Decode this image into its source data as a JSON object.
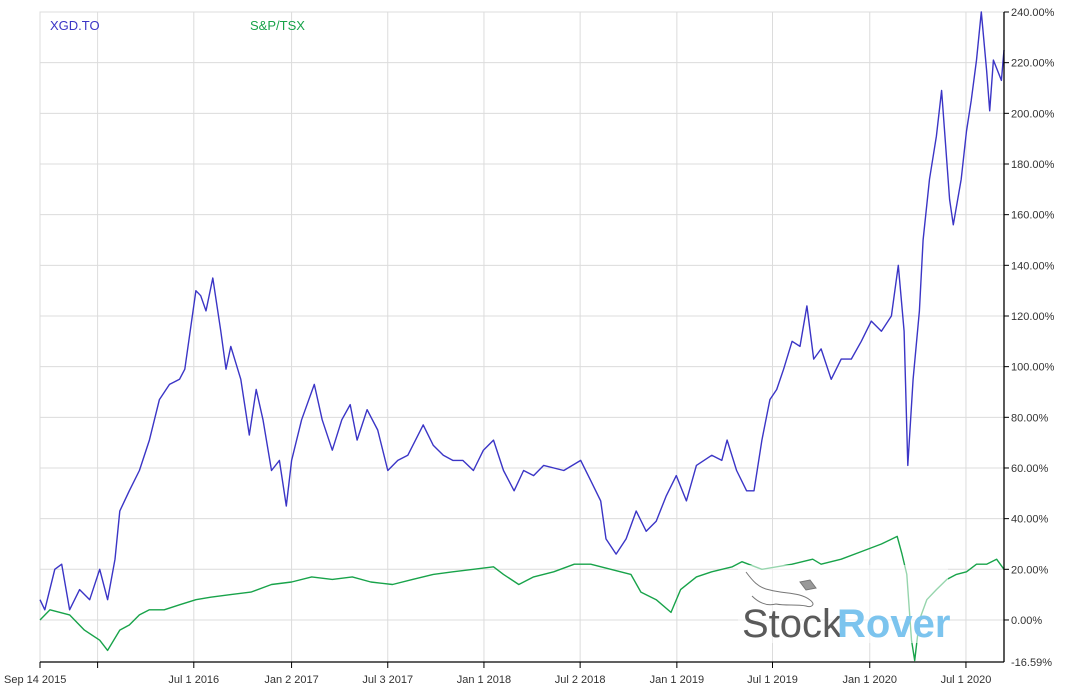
{
  "chart_data": {
    "type": "line",
    "title": "",
    "xlabel": "",
    "ylabel": "",
    "xlim": [
      "2015-09-14",
      "2020-09-11"
    ],
    "ylim": [
      -16.59,
      240
    ],
    "y_ticks": [
      240,
      220,
      200,
      180,
      160,
      140,
      120,
      100,
      80,
      60,
      40,
      20,
      0
    ],
    "y_tick_labels": [
      "240.00%",
      "220.00%",
      "200.00%",
      "180.00%",
      "160.00%",
      "140.00%",
      "120.00%",
      "100.00%",
      "80.00%",
      "60.00%",
      "40.00%",
      "20.00%",
      "0.00%"
    ],
    "y_min_label": "-16.59%",
    "x_ticks": [
      {
        "date": "2015-09-14",
        "label": "Sep 14 2015"
      },
      {
        "date": "2016-01-01",
        "label": ""
      },
      {
        "date": "2016-07-01",
        "label": "Jul 1 2016"
      },
      {
        "date": "2017-01-02",
        "label": "Jan 2 2017"
      },
      {
        "date": "2017-07-03",
        "label": "Jul 3 2017"
      },
      {
        "date": "2018-01-01",
        "label": "Jan 1 2018"
      },
      {
        "date": "2018-07-02",
        "label": "Jul 2 2018"
      },
      {
        "date": "2019-01-01",
        "label": "Jan 1 2019"
      },
      {
        "date": "2019-07-01",
        "label": "Jul 1 2019"
      },
      {
        "date": "2020-01-01",
        "label": "Jan 1 2020"
      },
      {
        "date": "2020-07-01",
        "label": "Jul 1 2020"
      }
    ],
    "grid": true,
    "legend_position": "top-left",
    "y_axis_side": "right",
    "series": [
      {
        "name": "XGD.TO",
        "color": "#3b35c6",
        "points": [
          [
            "2015-09-14",
            8
          ],
          [
            "2015-09-23",
            4
          ],
          [
            "2015-10-12",
            20
          ],
          [
            "2015-10-25",
            22
          ],
          [
            "2015-11-09",
            4
          ],
          [
            "2015-11-28",
            12
          ],
          [
            "2015-12-17",
            8
          ],
          [
            "2016-01-05",
            20
          ],
          [
            "2016-01-20",
            8
          ],
          [
            "2016-02-03",
            24
          ],
          [
            "2016-02-12",
            43
          ],
          [
            "2016-03-01",
            51
          ],
          [
            "2016-03-20",
            59
          ],
          [
            "2016-04-08",
            71
          ],
          [
            "2016-04-27",
            87
          ],
          [
            "2016-05-16",
            93
          ],
          [
            "2016-06-04",
            95
          ],
          [
            "2016-06-14",
            99
          ],
          [
            "2016-07-05",
            130
          ],
          [
            "2016-07-14",
            128
          ],
          [
            "2016-07-24",
            122
          ],
          [
            "2016-08-06",
            135
          ],
          [
            "2016-08-21",
            114
          ],
          [
            "2016-08-31",
            99
          ],
          [
            "2016-09-09",
            108
          ],
          [
            "2016-09-28",
            95
          ],
          [
            "2016-10-14",
            73
          ],
          [
            "2016-10-27",
            91
          ],
          [
            "2016-11-09",
            79
          ],
          [
            "2016-11-25",
            59
          ],
          [
            "2016-12-10",
            63
          ],
          [
            "2016-12-23",
            45
          ],
          [
            "2017-01-02",
            63
          ],
          [
            "2017-01-21",
            79
          ],
          [
            "2017-02-14",
            93
          ],
          [
            "2017-03-01",
            79
          ],
          [
            "2017-03-20",
            67
          ],
          [
            "2017-04-07",
            79
          ],
          [
            "2017-04-23",
            85
          ],
          [
            "2017-05-06",
            71
          ],
          [
            "2017-05-25",
            83
          ],
          [
            "2017-06-14",
            75
          ],
          [
            "2017-07-03",
            59
          ],
          [
            "2017-07-22",
            63
          ],
          [
            "2017-08-10",
            65
          ],
          [
            "2017-09-08",
            77
          ],
          [
            "2017-09-27",
            69
          ],
          [
            "2017-10-16",
            65
          ],
          [
            "2017-11-03",
            63
          ],
          [
            "2017-11-22",
            63
          ],
          [
            "2017-12-12",
            59
          ],
          [
            "2017-12-31",
            67
          ],
          [
            "2018-01-19",
            71
          ],
          [
            "2018-02-07",
            59
          ],
          [
            "2018-02-27",
            51
          ],
          [
            "2018-03-17",
            59
          ],
          [
            "2018-04-05",
            57
          ],
          [
            "2018-04-24",
            61
          ],
          [
            "2018-06-01",
            59
          ],
          [
            "2018-07-03",
            63
          ],
          [
            "2018-07-22",
            55
          ],
          [
            "2018-08-10",
            47
          ],
          [
            "2018-08-20",
            32
          ],
          [
            "2018-09-08",
            26
          ],
          [
            "2018-09-27",
            32
          ],
          [
            "2018-10-16",
            43
          ],
          [
            "2018-11-04",
            35
          ],
          [
            "2018-11-23",
            39
          ],
          [
            "2018-12-12",
            49
          ],
          [
            "2018-12-31",
            57
          ],
          [
            "2019-01-19",
            47
          ],
          [
            "2019-02-07",
            61
          ],
          [
            "2019-03-08",
            65
          ],
          [
            "2019-03-27",
            63
          ],
          [
            "2019-04-06",
            71
          ],
          [
            "2019-04-24",
            59
          ],
          [
            "2019-05-13",
            51
          ],
          [
            "2019-05-27",
            51
          ],
          [
            "2019-06-11",
            71
          ],
          [
            "2019-06-26",
            87
          ],
          [
            "2019-07-09",
            91
          ],
          [
            "2019-07-22",
            99
          ],
          [
            "2019-08-07",
            110
          ],
          [
            "2019-08-22",
            108
          ],
          [
            "2019-09-04",
            124
          ],
          [
            "2019-09-17",
            103
          ],
          [
            "2019-10-01",
            107
          ],
          [
            "2019-10-20",
            95
          ],
          [
            "2019-11-08",
            103
          ],
          [
            "2019-11-27",
            103
          ],
          [
            "2019-12-16",
            110
          ],
          [
            "2020-01-04",
            118
          ],
          [
            "2020-01-23",
            114
          ],
          [
            "2020-02-11",
            120
          ],
          [
            "2020-02-24",
            140
          ],
          [
            "2020-03-06",
            114
          ],
          [
            "2020-03-13",
            61
          ],
          [
            "2020-03-23",
            95
          ],
          [
            "2020-04-04",
            122
          ],
          [
            "2020-04-11",
            150
          ],
          [
            "2020-04-23",
            174
          ],
          [
            "2020-05-06",
            191
          ],
          [
            "2020-05-16",
            209
          ],
          [
            "2020-05-31",
            166
          ],
          [
            "2020-06-07",
            156
          ],
          [
            "2020-06-22",
            174
          ],
          [
            "2020-07-02",
            193
          ],
          [
            "2020-07-11",
            205
          ],
          [
            "2020-07-21",
            221
          ],
          [
            "2020-07-30",
            240
          ],
          [
            "2020-08-09",
            217
          ],
          [
            "2020-08-15",
            201
          ],
          [
            "2020-08-22",
            221
          ],
          [
            "2020-09-06",
            213
          ],
          [
            "2020-09-11",
            225
          ]
        ]
      },
      {
        "name": "S&P/TSX",
        "color": "#18a34a",
        "points": [
          [
            "2015-09-14",
            0
          ],
          [
            "2015-10-03",
            4
          ],
          [
            "2015-11-09",
            2
          ],
          [
            "2015-12-07",
            -4
          ],
          [
            "2016-01-05",
            -8
          ],
          [
            "2016-01-20",
            -12
          ],
          [
            "2016-02-12",
            -4
          ],
          [
            "2016-03-01",
            -2
          ],
          [
            "2016-03-20",
            2
          ],
          [
            "2016-04-08",
            4
          ],
          [
            "2016-05-06",
            4
          ],
          [
            "2016-06-04",
            6
          ],
          [
            "2016-07-05",
            8
          ],
          [
            "2016-08-02",
            9
          ],
          [
            "2016-09-09",
            10
          ],
          [
            "2016-10-17",
            11
          ],
          [
            "2016-11-25",
            14
          ],
          [
            "2017-01-02",
            15
          ],
          [
            "2017-02-09",
            17
          ],
          [
            "2017-03-20",
            16
          ],
          [
            "2017-04-27",
            17
          ],
          [
            "2017-06-01",
            15
          ],
          [
            "2017-07-12",
            14
          ],
          [
            "2017-08-19",
            16
          ],
          [
            "2017-09-27",
            18
          ],
          [
            "2017-11-03",
            19
          ],
          [
            "2017-12-12",
            20
          ],
          [
            "2018-01-19",
            21
          ],
          [
            "2018-02-07",
            18
          ],
          [
            "2018-03-08",
            14
          ],
          [
            "2018-04-05",
            17
          ],
          [
            "2018-05-13",
            19
          ],
          [
            "2018-06-21",
            22
          ],
          [
            "2018-07-22",
            22
          ],
          [
            "2018-08-29",
            20
          ],
          [
            "2018-10-06",
            18
          ],
          [
            "2018-10-25",
            11
          ],
          [
            "2018-11-23",
            8
          ],
          [
            "2018-12-21",
            3
          ],
          [
            "2019-01-08",
            12
          ],
          [
            "2019-02-07",
            17
          ],
          [
            "2019-03-08",
            19
          ],
          [
            "2019-04-16",
            21
          ],
          [
            "2019-05-04",
            23
          ],
          [
            "2019-06-11",
            20
          ],
          [
            "2019-08-07",
            22
          ],
          [
            "2019-09-15",
            24
          ],
          [
            "2019-10-01",
            22
          ],
          [
            "2019-11-08",
            24
          ],
          [
            "2019-12-16",
            27
          ],
          [
            "2020-01-23",
            30
          ],
          [
            "2020-02-22",
            33
          ],
          [
            "2020-03-02",
            26
          ],
          [
            "2020-03-11",
            18
          ],
          [
            "2020-03-20",
            -8
          ],
          [
            "2020-03-26",
            -16
          ],
          [
            "2020-04-04",
            0
          ],
          [
            "2020-04-18",
            8
          ],
          [
            "2020-05-06",
            12
          ],
          [
            "2020-05-26",
            16
          ],
          [
            "2020-06-13",
            18
          ],
          [
            "2020-07-02",
            19
          ],
          [
            "2020-07-21",
            22
          ],
          [
            "2020-08-09",
            22
          ],
          [
            "2020-08-28",
            24
          ],
          [
            "2020-09-11",
            20
          ]
        ]
      }
    ]
  },
  "watermark": {
    "part1": "Stock",
    "part2": "Rover",
    "color1": "#5a5a5a",
    "color2": "#7cc4ee"
  }
}
